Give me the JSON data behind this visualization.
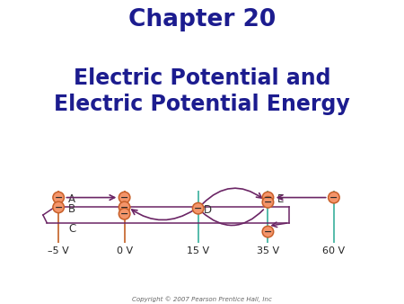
{
  "title1": "Chapter 20",
  "title2_line1": "Electric Potential and",
  "title2_line2": "Electric Potential Energy",
  "title_color": "#1c1c8f",
  "bg_color": "#ffffff",
  "copyright": "Copyright © 2007 Pearson Prentice Hall, Inc",
  "charge_face": "#f4956a",
  "charge_edge": "#c8602a",
  "arrow_color": "#6b2565",
  "label_color": "#333333",
  "line_orange": "#cc7744",
  "line_teal": "#55bbaa",
  "volt_labels": [
    "–5 V",
    "0 V",
    "15 V",
    "35 V",
    "60 V"
  ],
  "vx": [
    -5,
    0,
    15,
    35,
    60
  ]
}
